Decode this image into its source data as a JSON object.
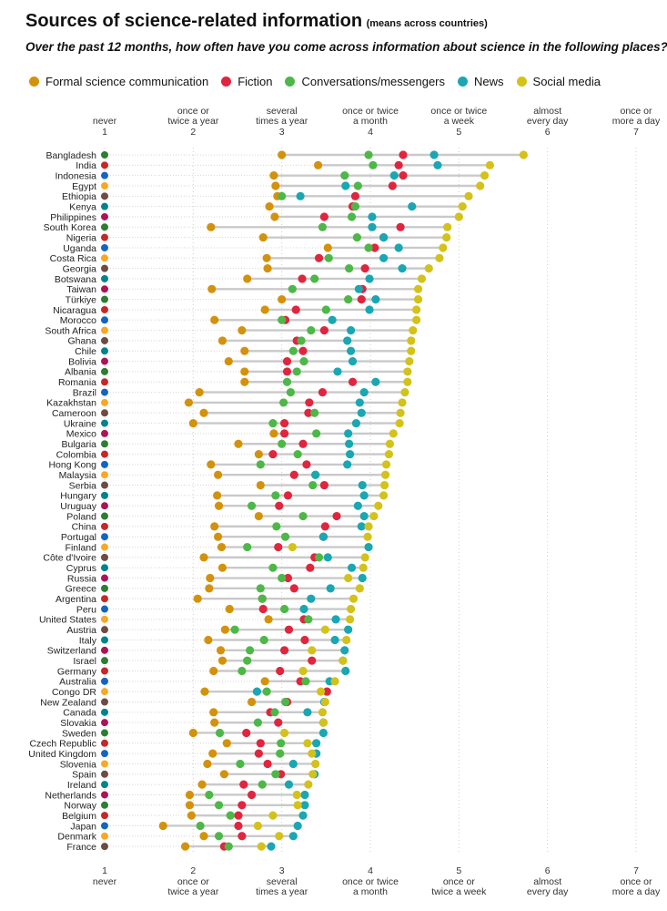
{
  "header": {
    "title": "Sources of science-related information",
    "title_note": "(means across countries)",
    "subtitle": "Over the past 12 months, how often have you come across information about science in the following places?"
  },
  "chart_data": {
    "type": "scatter",
    "title": "Sources of science-related information",
    "xlim": [
      1,
      7
    ],
    "scale": [
      {
        "value": 1,
        "label": "never"
      },
      {
        "value": 2,
        "label": "once or twice a year"
      },
      {
        "value": 3,
        "label": "several times a year"
      },
      {
        "value": 4,
        "label": "once or twice a month"
      },
      {
        "value": 5,
        "label": "once or twice a week"
      },
      {
        "value": 6,
        "label": "almost every day"
      },
      {
        "value": 7,
        "label": "once or more a day"
      }
    ],
    "series": [
      {
        "key": "formal",
        "name": "Formal science communication",
        "color": "#d4920c"
      },
      {
        "key": "fiction",
        "name": "Fiction",
        "color": "#e0263e"
      },
      {
        "key": "conv",
        "name": "Conversations/messengers",
        "color": "#4db848"
      },
      {
        "key": "news",
        "name": "News",
        "color": "#1aa7b3"
      },
      {
        "key": "social",
        "name": "Social media",
        "color": "#d4c21a"
      }
    ],
    "countries": [
      {
        "name": "Bangladesh",
        "formal": 3.0,
        "fiction": 4.37,
        "conv": 3.98,
        "news": 4.72,
        "social": 5.73
      },
      {
        "name": "India",
        "formal": 3.41,
        "fiction": 4.32,
        "conv": 4.03,
        "news": 4.76,
        "social": 5.35
      },
      {
        "name": "Indonesia",
        "formal": 2.91,
        "fiction": 4.37,
        "conv": 3.71,
        "news": 4.27,
        "social": 5.29
      },
      {
        "name": "Egypt",
        "formal": 2.93,
        "fiction": 4.25,
        "conv": 3.86,
        "news": 3.72,
        "social": 5.24
      },
      {
        "name": "Ethiopia",
        "formal": 2.95,
        "fiction": 3.83,
        "conv": 3.0,
        "news": 3.21,
        "social": 5.11
      },
      {
        "name": "Kenya",
        "formal": 2.86,
        "fiction": 3.8,
        "conv": 3.83,
        "news": 4.47,
        "social": 5.04
      },
      {
        "name": "Philippines",
        "formal": 2.92,
        "fiction": 3.48,
        "conv": 3.79,
        "news": 4.02,
        "social": 5.0
      },
      {
        "name": "South Korea",
        "formal": 2.2,
        "fiction": 4.34,
        "conv": 3.46,
        "news": 4.02,
        "social": 4.87
      },
      {
        "name": "Nigeria",
        "formal": 2.79,
        "fiction": 4.15,
        "conv": 3.85,
        "news": 4.15,
        "social": 4.86
      },
      {
        "name": "Uganda",
        "formal": 3.52,
        "fiction": 4.05,
        "conv": 3.98,
        "news": 4.32,
        "social": 4.82
      },
      {
        "name": "Costa Rica",
        "formal": 2.83,
        "fiction": 3.42,
        "conv": 3.53,
        "news": 4.15,
        "social": 4.78
      },
      {
        "name": "Georgia",
        "formal": 2.84,
        "fiction": 3.94,
        "conv": 3.76,
        "news": 4.36,
        "social": 4.66
      },
      {
        "name": "Botswana",
        "formal": 2.61,
        "fiction": 3.23,
        "conv": 3.37,
        "news": 3.99,
        "social": 4.58
      },
      {
        "name": "Taiwan",
        "formal": 2.21,
        "fiction": 3.91,
        "conv": 3.12,
        "news": 3.87,
        "social": 4.54
      },
      {
        "name": "Türkiye",
        "formal": 3.0,
        "fiction": 3.9,
        "conv": 3.75,
        "news": 4.06,
        "social": 4.54
      },
      {
        "name": "Nicaragua",
        "formal": 2.81,
        "fiction": 3.16,
        "conv": 3.5,
        "news": 3.99,
        "social": 4.52
      },
      {
        "name": "Morocco",
        "formal": 2.24,
        "fiction": 3.04,
        "conv": 3.0,
        "news": 3.57,
        "social": 4.52
      },
      {
        "name": "South Africa",
        "formal": 2.55,
        "fiction": 3.48,
        "conv": 3.33,
        "news": 3.78,
        "social": 4.48
      },
      {
        "name": "Ghana",
        "formal": 2.33,
        "fiction": 3.17,
        "conv": 3.22,
        "news": 3.74,
        "social": 4.46
      },
      {
        "name": "Chile",
        "formal": 2.58,
        "fiction": 3.24,
        "conv": 3.13,
        "news": 3.78,
        "social": 4.46
      },
      {
        "name": "Bolivia",
        "formal": 2.4,
        "fiction": 3.06,
        "conv": 3.25,
        "news": 3.8,
        "social": 4.44
      },
      {
        "name": "Albania",
        "formal": 2.58,
        "fiction": 3.06,
        "conv": 3.17,
        "news": 3.63,
        "social": 4.42
      },
      {
        "name": "Romania",
        "formal": 2.58,
        "fiction": 3.8,
        "conv": 3.06,
        "news": 4.06,
        "social": 4.42
      },
      {
        "name": "Brazil",
        "formal": 2.07,
        "fiction": 3.46,
        "conv": 3.1,
        "news": 3.93,
        "social": 4.39
      },
      {
        "name": "Kazakhstan",
        "formal": 1.95,
        "fiction": 3.31,
        "conv": 3.02,
        "news": 3.88,
        "social": 4.36
      },
      {
        "name": "Cameroon",
        "formal": 2.12,
        "fiction": 3.3,
        "conv": 3.37,
        "news": 3.9,
        "social": 4.34
      },
      {
        "name": "Ukraine",
        "formal": 2.0,
        "fiction": 3.03,
        "conv": 2.9,
        "news": 3.84,
        "social": 4.33
      },
      {
        "name": "Mexico",
        "formal": 2.91,
        "fiction": 3.03,
        "conv": 3.39,
        "news": 3.75,
        "social": 4.26
      },
      {
        "name": "Bulgaria",
        "formal": 2.51,
        "fiction": 3.24,
        "conv": 3.0,
        "news": 3.76,
        "social": 4.22
      },
      {
        "name": "Colombia",
        "formal": 2.74,
        "fiction": 2.9,
        "conv": 3.18,
        "news": 3.77,
        "social": 4.21
      },
      {
        "name": "Hong Kong",
        "formal": 2.2,
        "fiction": 3.28,
        "conv": 2.76,
        "news": 3.74,
        "social": 4.18
      },
      {
        "name": "Malaysia",
        "formal": 2.28,
        "fiction": 3.14,
        "conv": 3.38,
        "news": 3.38,
        "social": 4.17
      },
      {
        "name": "Serbia",
        "formal": 2.76,
        "fiction": 3.48,
        "conv": 3.35,
        "news": 3.91,
        "social": 4.16
      },
      {
        "name": "Hungary",
        "formal": 2.27,
        "fiction": 3.07,
        "conv": 2.93,
        "news": 3.93,
        "social": 4.15
      },
      {
        "name": "Uruguay",
        "formal": 2.29,
        "fiction": 2.97,
        "conv": 2.66,
        "news": 3.86,
        "social": 4.09
      },
      {
        "name": "Poland",
        "formal": 2.74,
        "fiction": 3.62,
        "conv": 3.24,
        "news": 3.93,
        "social": 4.04
      },
      {
        "name": "China",
        "formal": 2.24,
        "fiction": 3.49,
        "conv": 2.94,
        "news": 3.9,
        "social": 3.98
      },
      {
        "name": "Portugal",
        "formal": 2.28,
        "fiction": 3.47,
        "conv": 3.04,
        "news": 3.47,
        "social": 3.97
      },
      {
        "name": "Finland",
        "formal": 2.32,
        "fiction": 2.96,
        "conv": 2.61,
        "news": 3.98,
        "social": 3.12
      },
      {
        "name": "Côte d'Ivoire",
        "formal": 2.12,
        "fiction": 3.37,
        "conv": 3.42,
        "news": 3.52,
        "social": 3.94
      },
      {
        "name": "Cyprus",
        "formal": 2.33,
        "fiction": 3.32,
        "conv": 2.9,
        "news": 3.79,
        "social": 3.92
      },
      {
        "name": "Russia",
        "formal": 2.19,
        "fiction": 3.07,
        "conv": 3.0,
        "news": 3.91,
        "social": 3.75
      },
      {
        "name": "Greece",
        "formal": 2.18,
        "fiction": 3.14,
        "conv": 2.76,
        "news": 3.55,
        "social": 3.88
      },
      {
        "name": "Argentina",
        "formal": 2.05,
        "fiction": 2.78,
        "conv": 2.78,
        "news": 3.33,
        "social": 3.81
      },
      {
        "name": "Peru",
        "formal": 2.41,
        "fiction": 2.79,
        "conv": 3.03,
        "news": 3.25,
        "social": 3.78
      },
      {
        "name": "United States",
        "formal": 2.85,
        "fiction": 3.25,
        "conv": 3.3,
        "news": 3.61,
        "social": 3.77
      },
      {
        "name": "Austria",
        "formal": 2.36,
        "fiction": 3.08,
        "conv": 2.47,
        "news": 3.75,
        "social": 3.49
      },
      {
        "name": "Italy",
        "formal": 2.17,
        "fiction": 3.26,
        "conv": 2.8,
        "news": 3.6,
        "social": 3.73
      },
      {
        "name": "Switzerland",
        "formal": 2.31,
        "fiction": 3.03,
        "conv": 2.64,
        "news": 3.71,
        "social": 3.34
      },
      {
        "name": "Israel",
        "formal": 2.33,
        "fiction": 3.34,
        "conv": 2.61,
        "news": 3.69,
        "social": 3.69
      },
      {
        "name": "Germany",
        "formal": 2.23,
        "fiction": 2.98,
        "conv": 2.55,
        "news": 3.72,
        "social": 3.24
      },
      {
        "name": "Australia",
        "formal": 2.81,
        "fiction": 3.21,
        "conv": 3.27,
        "news": 3.54,
        "social": 3.6
      },
      {
        "name": "Congo DR",
        "formal": 2.13,
        "fiction": 3.51,
        "conv": 2.83,
        "news": 2.72,
        "social": 3.44
      },
      {
        "name": "New Zealand",
        "formal": 2.66,
        "fiction": 3.06,
        "conv": 3.04,
        "news": 3.48,
        "social": 3.49
      },
      {
        "name": "Canada",
        "formal": 2.23,
        "fiction": 2.87,
        "conv": 2.92,
        "news": 3.29,
        "social": 3.46
      },
      {
        "name": "Slovakia",
        "formal": 2.24,
        "fiction": 2.96,
        "conv": 2.73,
        "news": 3.47,
        "social": 3.47
      },
      {
        "name": "Sweden",
        "formal": 2.0,
        "fiction": 2.6,
        "conv": 2.3,
        "news": 3.47,
        "social": 3.03
      },
      {
        "name": "Czech Republic",
        "formal": 2.38,
        "fiction": 2.76,
        "conv": 2.99,
        "news": 3.39,
        "social": 3.29
      },
      {
        "name": "United Kingdom",
        "formal": 2.22,
        "fiction": 2.74,
        "conv": 2.98,
        "news": 3.39,
        "social": 3.34
      },
      {
        "name": "Slovenia",
        "formal": 2.16,
        "fiction": 2.84,
        "conv": 2.53,
        "news": 3.13,
        "social": 3.38
      },
      {
        "name": "Spain",
        "formal": 2.35,
        "fiction": 2.99,
        "conv": 2.93,
        "news": 3.37,
        "social": 3.35
      },
      {
        "name": "Ireland",
        "formal": 2.1,
        "fiction": 2.57,
        "conv": 2.78,
        "news": 3.08,
        "social": 3.3
      },
      {
        "name": "Netherlands",
        "formal": 1.96,
        "fiction": 2.66,
        "conv": 2.18,
        "news": 3.26,
        "social": 3.17
      },
      {
        "name": "Norway",
        "formal": 1.96,
        "fiction": 2.55,
        "conv": 2.29,
        "news": 3.26,
        "social": 3.18
      },
      {
        "name": "Belgium",
        "formal": 1.98,
        "fiction": 2.51,
        "conv": 2.42,
        "news": 3.24,
        "social": 2.9
      },
      {
        "name": "Japan",
        "formal": 1.66,
        "fiction": 2.51,
        "conv": 2.08,
        "news": 3.18,
        "social": 2.73
      },
      {
        "name": "Denmark",
        "formal": 2.12,
        "fiction": 2.55,
        "conv": 2.29,
        "news": 3.13,
        "social": 2.97
      },
      {
        "name": "France",
        "formal": 1.91,
        "fiction": 2.35,
        "conv": 2.4,
        "news": 2.88,
        "social": 2.77
      }
    ]
  }
}
